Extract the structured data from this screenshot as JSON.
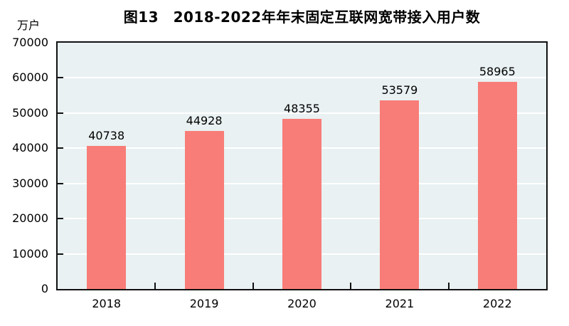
{
  "figure": {
    "title": "图13　2018-2022年年末固定互联网宽带接入用户数",
    "unit_label": "万户"
  },
  "chart_data": {
    "type": "bar",
    "title": "图13　2018-2022年年末固定互联网宽带接入用户数",
    "ylabel": "万户",
    "xlabel": "",
    "categories": [
      "2018",
      "2019",
      "2020",
      "2021",
      "2022"
    ],
    "values": [
      40738,
      44928,
      48355,
      53579,
      58965
    ],
    "ylim": [
      0,
      70000
    ],
    "ytick_step": 10000,
    "ytick_labels": [
      "0",
      "10000",
      "20000",
      "30000",
      "40000",
      "50000",
      "60000",
      "70000"
    ],
    "grid": "horizontal",
    "data_labels": [
      40738,
      44928,
      48355,
      53579,
      58965
    ],
    "legend": "none",
    "colors": {
      "bar": "#f87d78",
      "plot_background": "#e9f1f2",
      "gridline": "#ffffff",
      "axis": "#111111",
      "text": "#000000"
    }
  }
}
